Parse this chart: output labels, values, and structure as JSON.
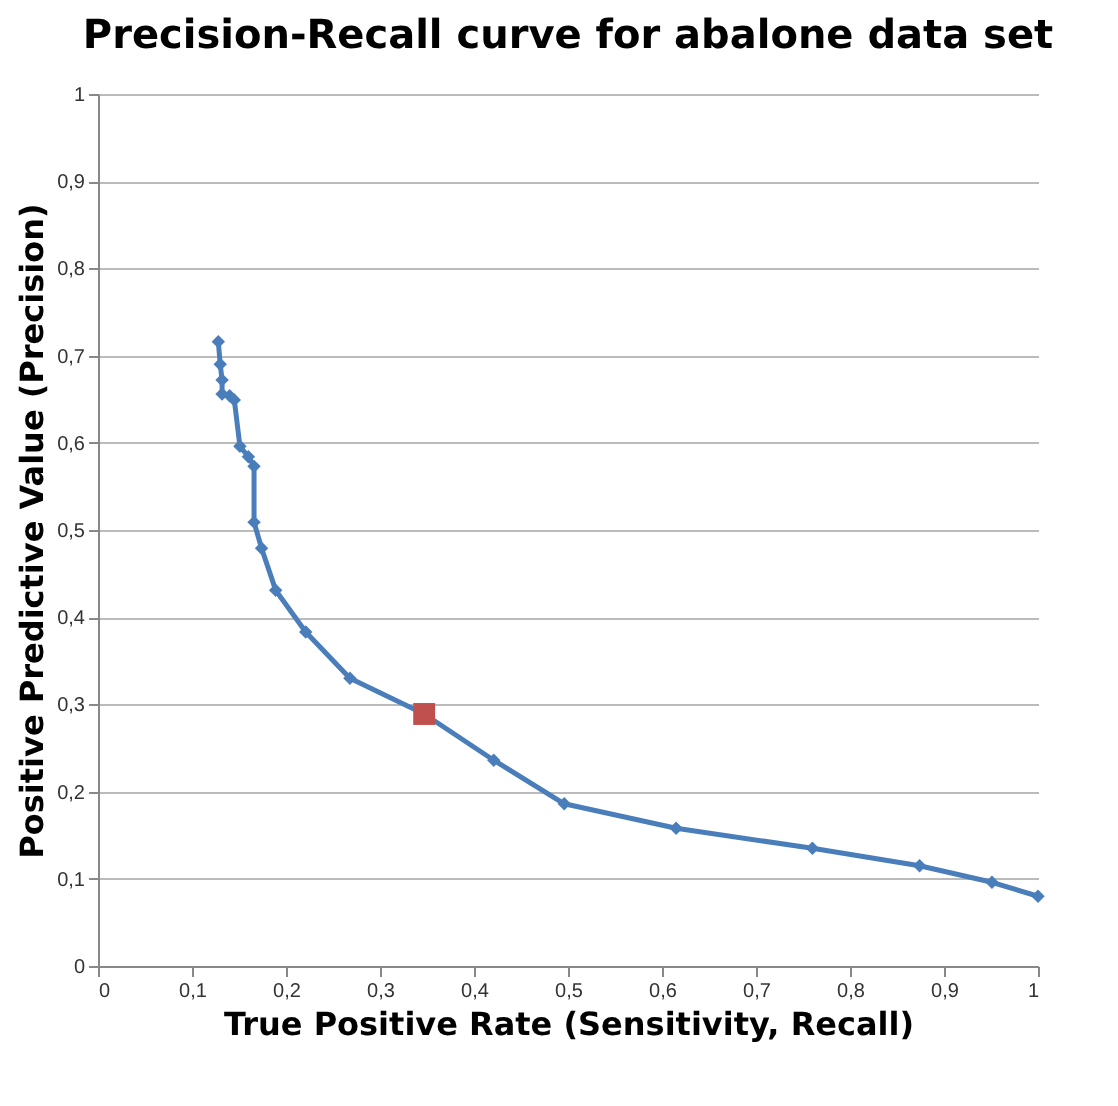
{
  "chart_data": {
    "type": "line",
    "title": "Precision-Recall curve for abalone data set",
    "xlabel": "True Positive Rate (Sensitivity, Recall)",
    "ylabel": "Positive Predictive Value (Precision)",
    "xlim": [
      0,
      1
    ],
    "ylim": [
      0,
      1
    ],
    "xticks": [
      0,
      {
        "value": 0.1,
        "label": "0,1"
      },
      {
        "value": 0.2,
        "label": "0,2"
      },
      {
        "value": 0.3,
        "label": "0,3"
      },
      {
        "value": 0.4,
        "label": "0,4"
      },
      {
        "value": 0.5,
        "label": "0,5"
      },
      {
        "value": 0.6,
        "label": "0,6"
      },
      {
        "value": 0.7,
        "label": "0,7"
      },
      {
        "value": 0.8,
        "label": "0,8"
      },
      {
        "value": 0.9,
        "label": "0,9"
      },
      1
    ],
    "yticks": [
      0,
      {
        "value": 0.1,
        "label": "0,1"
      },
      {
        "value": 0.2,
        "label": "0,2"
      },
      {
        "value": 0.3,
        "label": "0,3"
      },
      {
        "value": 0.4,
        "label": "0,4"
      },
      {
        "value": 0.5,
        "label": "0,5"
      },
      {
        "value": 0.6,
        "label": "0,6"
      },
      {
        "value": 0.7,
        "label": "0,7"
      },
      {
        "value": 0.8,
        "label": "0,8"
      },
      {
        "value": 0.9,
        "label": "0,9"
      },
      1
    ],
    "grid": "y",
    "series": [
      {
        "color": "#4a7ebb",
        "marker": "diamond",
        "x": [
          0.128,
          0.13,
          0.132,
          0.132,
          0.14,
          0.145,
          0.151,
          0.16,
          0.166,
          0.166,
          0.174,
          0.189,
          0.221,
          0.268,
          0.347,
          0.421,
          0.496,
          0.615,
          0.76,
          0.874,
          0.951,
          1.0
        ],
        "values": [
          0.716,
          0.69,
          0.672,
          0.656,
          0.654,
          0.649,
          0.596,
          0.584,
          0.573,
          0.509,
          0.479,
          0.431,
          0.383,
          0.33,
          0.289,
          0.236,
          0.186,
          0.158,
          0.135,
          0.115,
          0.096,
          0.08
        ]
      },
      {
        "type": "scatter",
        "color": "#c0504d",
        "marker": "square",
        "x": [
          0.347
        ],
        "values": [
          0.289
        ]
      }
    ]
  }
}
